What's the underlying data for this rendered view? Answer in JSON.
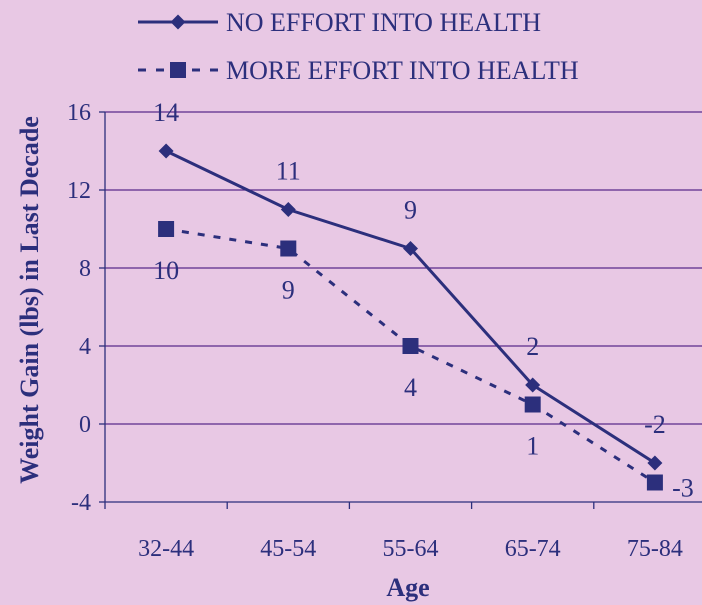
{
  "chart_data": {
    "type": "line",
    "xlabel": "Age",
    "ylabel": "Weight Gain (lbs) in Last Decade",
    "categories": [
      "32-44",
      "45-54",
      "55-64",
      "65-74",
      "75-84"
    ],
    "ylim": [
      -4,
      16
    ],
    "yticks": [
      16,
      12,
      8,
      4,
      0,
      -4
    ],
    "grid": true,
    "legend_position": "top",
    "series": [
      {
        "name": "NO EFFORT INTO HEALTH",
        "values": [
          14,
          11,
          9,
          2,
          -2
        ],
        "labels": [
          "14",
          "11",
          "9",
          "2",
          "-2"
        ],
        "marker": "diamond",
        "line": "solid",
        "color": "#2c2f7c"
      },
      {
        "name": "MORE EFFORT INTO HEALTH",
        "values": [
          10,
          9,
          4,
          1,
          -3
        ],
        "labels": [
          "10",
          "9",
          "4",
          "1",
          "-3"
        ],
        "marker": "square",
        "line": "dashed",
        "color": "#2c2f7c"
      }
    ],
    "colors": {
      "background": "#e8c8e4",
      "ink": "#2c2f7c",
      "grid": "#5a2a8a"
    }
  }
}
